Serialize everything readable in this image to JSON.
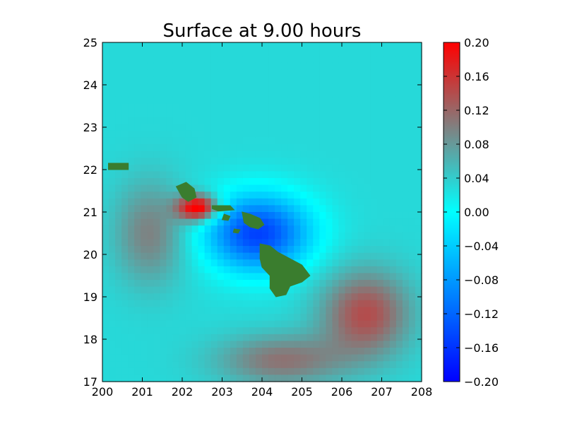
{
  "chart_data": {
    "type": "heatmap",
    "title": "Surface at 9.00 hours",
    "xlabel": "",
    "ylabel": "",
    "xlim": [
      200,
      208
    ],
    "ylim": [
      17,
      25
    ],
    "x_ticks": [
      200,
      201,
      202,
      203,
      204,
      205,
      206,
      207,
      208
    ],
    "y_ticks": [
      17,
      18,
      19,
      20,
      21,
      22,
      23,
      24,
      25
    ],
    "grid": false,
    "grid_size": 50,
    "colormap": {
      "name": "blue-cyan-red",
      "range": [
        -0.2,
        0.2
      ],
      "stops": [
        {
          "value": -0.2,
          "color": "#0000ff"
        },
        {
          "value": 0.0,
          "color": "#00ffff"
        },
        {
          "value": 0.1,
          "color": "#808080"
        },
        {
          "value": 0.2,
          "color": "#ff0000"
        }
      ]
    },
    "colorbar": {
      "ticks": [
        0.2,
        0.16,
        0.12,
        0.08,
        0.04,
        0.0,
        -0.04,
        -0.08,
        -0.12,
        -0.16,
        -0.2
      ],
      "tick_labels": [
        "0.20",
        "0.16",
        "0.12",
        "0.08",
        "0.04",
        "0.00",
        "−0.04",
        "−0.08",
        "−0.12",
        "−0.16",
        "−0.20"
      ]
    },
    "field_features": [
      {
        "kind": "background",
        "value": 0.03
      },
      {
        "kind": "negative-trough",
        "center": [
          203.9,
          20.5
        ],
        "radius": [
          1.3,
          0.9
        ],
        "value": -0.18
      },
      {
        "kind": "positive-peak",
        "center": [
          202.4,
          21.1
        ],
        "radius": [
          0.5,
          0.3
        ],
        "value": 0.2
      },
      {
        "kind": "positive-bulge",
        "center": [
          206.6,
          18.6
        ],
        "radius": [
          1.1,
          1.0
        ],
        "value": 0.11
      },
      {
        "kind": "positive-tail",
        "center": [
          204.5,
          17.5
        ],
        "radius": [
          1.6,
          0.6
        ],
        "value": 0.08
      },
      {
        "kind": "positive-band",
        "center": [
          201.2,
          20.5
        ],
        "radius": [
          0.9,
          1.2
        ],
        "value": 0.07
      }
    ],
    "land_color": "#3a7d2e",
    "land_masses": [
      {
        "name": "hawaii-island",
        "polygon": [
          [
            203.95,
            20.25
          ],
          [
            204.2,
            20.2
          ],
          [
            204.4,
            20.05
          ],
          [
            204.7,
            19.9
          ],
          [
            205.0,
            19.75
          ],
          [
            205.2,
            19.5
          ],
          [
            205.0,
            19.35
          ],
          [
            204.7,
            19.25
          ],
          [
            204.6,
            19.05
          ],
          [
            204.35,
            19.0
          ],
          [
            204.2,
            19.2
          ],
          [
            204.2,
            19.5
          ],
          [
            204.0,
            19.7
          ],
          [
            203.95,
            19.9
          ]
        ]
      },
      {
        "name": "maui",
        "polygon": [
          [
            203.5,
            21.0
          ],
          [
            203.7,
            20.95
          ],
          [
            203.95,
            20.85
          ],
          [
            204.05,
            20.7
          ],
          [
            203.9,
            20.6
          ],
          [
            203.7,
            20.65
          ],
          [
            203.55,
            20.75
          ]
        ]
      },
      {
        "name": "molokai",
        "polygon": [
          [
            202.75,
            21.15
          ],
          [
            203.2,
            21.15
          ],
          [
            203.3,
            21.05
          ],
          [
            202.9,
            21.02
          ],
          [
            202.75,
            21.08
          ]
        ]
      },
      {
        "name": "oahu",
        "polygon": [
          [
            201.85,
            21.6
          ],
          [
            202.1,
            21.7
          ],
          [
            202.3,
            21.55
          ],
          [
            202.35,
            21.35
          ],
          [
            202.15,
            21.25
          ],
          [
            202.0,
            21.35
          ]
        ]
      },
      {
        "name": "lanai",
        "polygon": [
          [
            203.05,
            20.95
          ],
          [
            203.2,
            20.9
          ],
          [
            203.15,
            20.8
          ],
          [
            203.0,
            20.82
          ]
        ]
      },
      {
        "name": "kahoolawe",
        "polygon": [
          [
            203.3,
            20.6
          ],
          [
            203.45,
            20.58
          ],
          [
            203.4,
            20.5
          ],
          [
            203.28,
            20.52
          ]
        ]
      },
      {
        "name": "kauai-strip",
        "polygon": [
          [
            200.15,
            22.15
          ],
          [
            200.65,
            22.15
          ],
          [
            200.65,
            22.0
          ],
          [
            200.15,
            22.0
          ]
        ]
      }
    ]
  }
}
